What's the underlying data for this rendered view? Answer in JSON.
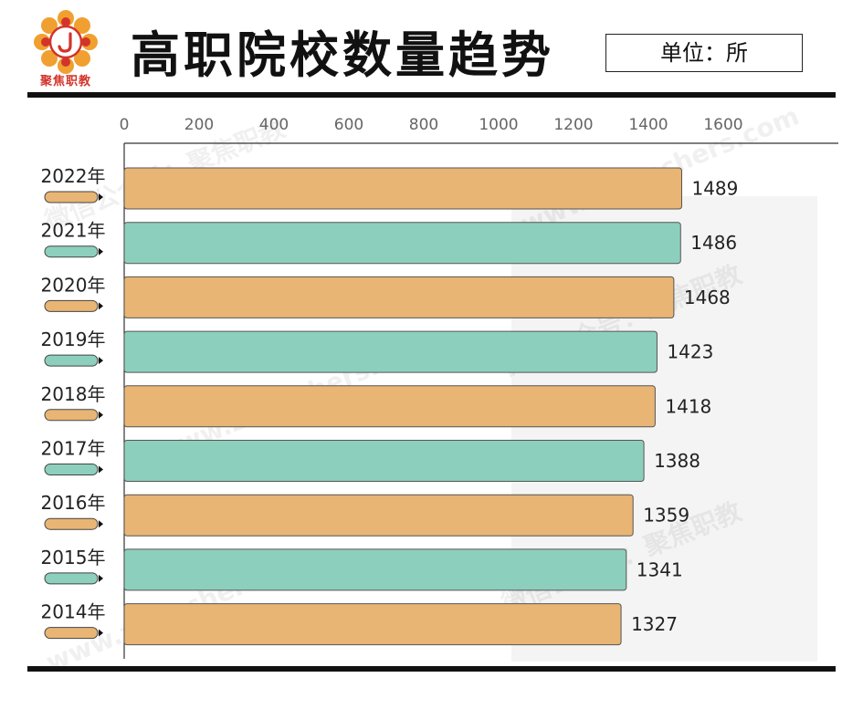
{
  "header": {
    "title": "高职院校数量趋势",
    "unit": "单位：所",
    "logo_text": "聚焦职教"
  },
  "watermarks": [
    "微信公众号：聚焦职教",
    "www.ziteachers.com"
  ],
  "colors": {
    "orange": "#e8b574",
    "teal": "#8dcfbd",
    "bar_border": "#555555",
    "rule": "#111111",
    "logo_red": "#d2342a",
    "logo_orange": "#f0a030"
  },
  "chart_data": {
    "type": "bar",
    "orientation": "horizontal",
    "title": "高职院校数量趋势",
    "unit": "单位：所",
    "categories": [
      "2022年",
      "2021年",
      "2020年",
      "2019年",
      "2018年",
      "2017年",
      "2016年",
      "2015年",
      "2014年"
    ],
    "values": [
      1489,
      1486,
      1468,
      1423,
      1418,
      1388,
      1359,
      1341,
      1327
    ],
    "bar_colors": [
      "orange",
      "teal",
      "orange",
      "teal",
      "orange",
      "teal",
      "orange",
      "teal",
      "orange"
    ],
    "xticks": [
      0,
      200,
      400,
      600,
      800,
      1000,
      1200,
      1400,
      1600
    ],
    "xlim": [
      0,
      1800
    ],
    "axis_position": "top",
    "grid": false,
    "legend": "none"
  }
}
